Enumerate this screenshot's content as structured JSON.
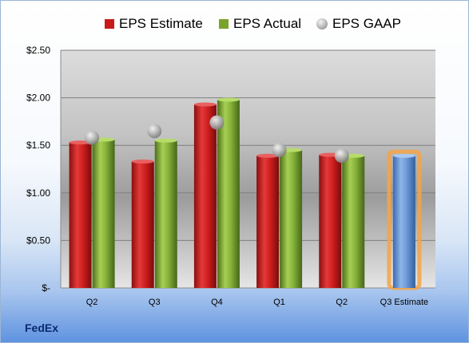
{
  "company": "FedEx",
  "colors": {
    "estimate": "#c91a1a",
    "actual": "#7aa32c",
    "gaap": "#b3b3b3",
    "next_estimate": "#5f8fd0",
    "highlight": "#f5a547"
  },
  "chart_data": {
    "type": "bar",
    "categories": [
      "Q2",
      "Q3",
      "Q4",
      "Q1",
      "Q2",
      "Q3 Estimate"
    ],
    "series": [
      {
        "name": "EPS Estimate",
        "values": [
          1.53,
          1.33,
          1.93,
          1.39,
          1.4,
          null
        ]
      },
      {
        "name": "EPS Actual",
        "values": [
          1.56,
          1.55,
          1.98,
          1.45,
          1.39,
          null
        ]
      },
      {
        "name": "EPS GAAP",
        "values": [
          1.58,
          1.65,
          1.74,
          1.45,
          1.39,
          null
        ]
      },
      {
        "name": "",
        "values": [
          null,
          null,
          null,
          null,
          null,
          1.39
        ]
      }
    ],
    "yticks": [
      "$-",
      "$0.50",
      "$1.00",
      "$1.50",
      "$2.00",
      "$2.50"
    ],
    "ylim": [
      0,
      2.5
    ],
    "grid": true,
    "legend_position": "top"
  }
}
